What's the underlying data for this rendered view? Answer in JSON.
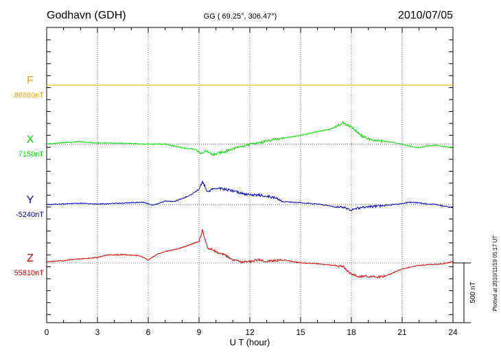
{
  "header": {
    "station": "Godhavn (GDH)",
    "coords": "GG ( 69.25°, 306.47°)",
    "date": "2010/07/05"
  },
  "footer": {
    "plotted": "Plotted at 2010/11/19 05:17 UT"
  },
  "colors": {
    "F": "#f0a800",
    "X": "#00e000",
    "Y": "#0000d0",
    "Z": "#e00000",
    "axis": "#000000",
    "grid": "#555555"
  },
  "chart_data": {
    "type": "line",
    "title": "",
    "xlabel": "U T (hour)",
    "ylabel": "",
    "xlim": [
      0,
      24
    ],
    "xticks": [
      0,
      3,
      6,
      9,
      12,
      15,
      18,
      21,
      24
    ],
    "x_tick_labels": [
      "0",
      "3",
      "6",
      "9",
      "12",
      "15",
      "18",
      "21",
      "24"
    ],
    "grid": true,
    "scale_bar_nT": 500,
    "scale_bar_label": "500 nT",
    "series": [
      {
        "name": "F",
        "baseline": "88880nT",
        "color": "#f0a800",
        "x": [
          0,
          24
        ],
        "values": [
          88880,
          88880
        ]
      },
      {
        "name": "X",
        "baseline": "7150nT",
        "color": "#00e000",
        "x": [
          0,
          1,
          2,
          3,
          4,
          5,
          6,
          7,
          8,
          8.8,
          9.1,
          9.4,
          9.8,
          10.5,
          11,
          12,
          12.8,
          13.5,
          14,
          15,
          16,
          16.7,
          17.2,
          17.5,
          17.8,
          18.2,
          18.6,
          19,
          19.5,
          20,
          20.5,
          21,
          21.5,
          22,
          22.5,
          23,
          23.5,
          24
        ],
        "values": [
          7150,
          7165,
          7170,
          7160,
          7160,
          7155,
          7150,
          7150,
          7120,
          7105,
          7070,
          7095,
          7060,
          7090,
          7110,
          7150,
          7170,
          7195,
          7200,
          7225,
          7255,
          7275,
          7305,
          7330,
          7310,
          7270,
          7220,
          7195,
          7180,
          7170,
          7165,
          7150,
          7130,
          7120,
          7135,
          7140,
          7130,
          7120
        ]
      },
      {
        "name": "Y",
        "baseline": "-5240nT",
        "color": "#0000d0",
        "x": [
          0,
          1,
          2,
          3,
          4,
          5,
          5.7,
          6.3,
          7,
          7.5,
          8,
          8.5,
          9,
          9.2,
          9.5,
          10,
          10.5,
          11,
          11.5,
          12,
          12.5,
          13,
          13.5,
          14,
          15,
          16,
          16.5,
          17,
          17.5,
          18,
          18.5,
          19,
          19.5,
          20,
          20.5,
          21,
          21.5,
          22,
          22.5,
          23,
          23.5,
          24
        ],
        "values": [
          -5240,
          -5235,
          -5230,
          -5235,
          -5230,
          -5225,
          -5220,
          -5245,
          -5210,
          -5215,
          -5190,
          -5160,
          -5110,
          -5045,
          -5130,
          -5100,
          -5110,
          -5125,
          -5145,
          -5160,
          -5160,
          -5170,
          -5185,
          -5215,
          -5225,
          -5235,
          -5245,
          -5260,
          -5265,
          -5285,
          -5265,
          -5260,
          -5255,
          -5245,
          -5240,
          -5230,
          -5220,
          -5225,
          -5235,
          -5240,
          -5255,
          -5265
        ]
      },
      {
        "name": "Z",
        "baseline": "55810nT",
        "color": "#e00000",
        "x": [
          0,
          1,
          2,
          3,
          3.5,
          4.5,
          5.5,
          6,
          6.5,
          7,
          7.5,
          8,
          8.5,
          9,
          9.2,
          9.5,
          10,
          10.5,
          11,
          11.5,
          12,
          12.5,
          13,
          13.5,
          14,
          15,
          16,
          16.5,
          17,
          17.5,
          17.8,
          18,
          18.5,
          19,
          19.5,
          20,
          20.5,
          21,
          21.5,
          22,
          22.5,
          23,
          23.5,
          24
        ],
        "values": [
          55820,
          55830,
          55845,
          55855,
          55875,
          55880,
          55870,
          55835,
          55880,
          55905,
          55920,
          55940,
          55965,
          55990,
          56085,
          55940,
          55905,
          55875,
          55835,
          55815,
          55820,
          55835,
          55825,
          55830,
          55835,
          55810,
          55805,
          55795,
          55790,
          55780,
          55740,
          55715,
          55695,
          55700,
          55690,
          55700,
          55730,
          55760,
          55775,
          55790,
          55795,
          55800,
          55805,
          55820
        ]
      }
    ]
  }
}
